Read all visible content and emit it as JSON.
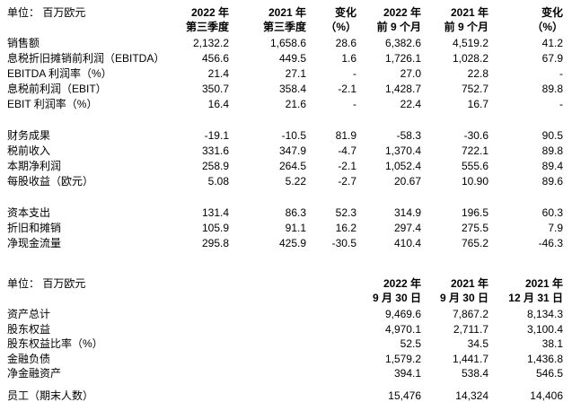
{
  "colors": {
    "text": "#000000",
    "background": "#ffffff"
  },
  "table1": {
    "unit_label": "单位：  百万欧元",
    "columns": [
      {
        "line1": "2022 年",
        "line2": "第三季度"
      },
      {
        "line1": "2021 年",
        "line2": "第三季度"
      },
      {
        "line1": "变化",
        "line2": "（%）"
      },
      {
        "line1": "2022 年",
        "line2": "前 9 个月"
      },
      {
        "line1": "2021 年",
        "line2": "前 9 个月"
      },
      {
        "line1": "变化",
        "line2": "（%）"
      }
    ],
    "row_groups": [
      [
        {
          "label": "销售额",
          "values": [
            "2,132.2",
            "1,658.6",
            "28.6",
            "6,382.6",
            "4,519.2",
            "41.2"
          ]
        },
        {
          "label": "息税折旧摊销前利润（EBITDA）",
          "values": [
            "456.6",
            "449.5",
            "1.6",
            "1,726.1",
            "1,028.2",
            "67.9"
          ]
        },
        {
          "label": "EBITDA 利润率（%）",
          "values": [
            "21.4",
            "27.1",
            "-",
            "27.0",
            "22.8",
            "-"
          ]
        },
        {
          "label": "息税前利润（EBIT）",
          "values": [
            "350.7",
            "358.4",
            "-2.1",
            "1,428.7",
            "752.7",
            "89.8"
          ]
        },
        {
          "label": "EBIT 利润率（%）",
          "values": [
            "16.4",
            "21.6",
            "-",
            "22.4",
            "16.7",
            "-"
          ]
        }
      ],
      [
        {
          "label": "财务成果",
          "values": [
            "-19.1",
            "-10.5",
            "81.9",
            "-58.3",
            "-30.6",
            "90.5"
          ]
        },
        {
          "label": "税前收入",
          "values": [
            "331.6",
            "347.9",
            "-4.7",
            "1,370.4",
            "722.1",
            "89.8"
          ]
        },
        {
          "label": "本期净利润",
          "values": [
            "258.9",
            "264.5",
            "-2.1",
            "1,052.4",
            "555.6",
            "89.4"
          ]
        },
        {
          "label": "每股收益（欧元）",
          "values": [
            "5.08",
            "5.22",
            "-2.7",
            "20.67",
            "10.90",
            "89.6"
          ]
        }
      ],
      [
        {
          "label": "资本支出",
          "values": [
            "131.4",
            "86.3",
            "52.3",
            "314.9",
            "196.5",
            "60.3"
          ]
        },
        {
          "label": "折旧和摊销",
          "values": [
            "105.9",
            "91.1",
            "16.2",
            "297.4",
            "275.5",
            "7.9"
          ]
        },
        {
          "label": "净现金流量",
          "values": [
            "295.8",
            "425.9",
            "-30.5",
            "410.4",
            "765.2",
            "-46.3"
          ]
        }
      ]
    ]
  },
  "table2": {
    "unit_label": "单位：  百万欧元",
    "columns": [
      {
        "line1": "2022 年",
        "line2": "9 月 30 日"
      },
      {
        "line1": "2021 年",
        "line2": "9 月 30 日"
      },
      {
        "line1": "2021 年",
        "line2": "12 月 31 日"
      }
    ],
    "row_groups": [
      [
        {
          "label": "资产总计",
          "values": [
            "9,469.6",
            "7,867.2",
            "8,134.3"
          ]
        },
        {
          "label": "股东权益",
          "values": [
            "4,970.1",
            "2,711.7",
            "3,100.4"
          ]
        },
        {
          "label": "股东权益比率（%）",
          "values": [
            "52.5",
            "34.5",
            "38.1"
          ]
        },
        {
          "label": "金融负债",
          "values": [
            "1,579.2",
            "1,441.7",
            "1,436.8"
          ]
        },
        {
          "label": "净金融资产",
          "values": [
            "394.1",
            "538.4",
            "546.5"
          ]
        }
      ],
      [
        {
          "label": "员工（期末人数）",
          "values": [
            "15,476",
            "14,324",
            "14,406"
          ]
        }
      ]
    ]
  }
}
